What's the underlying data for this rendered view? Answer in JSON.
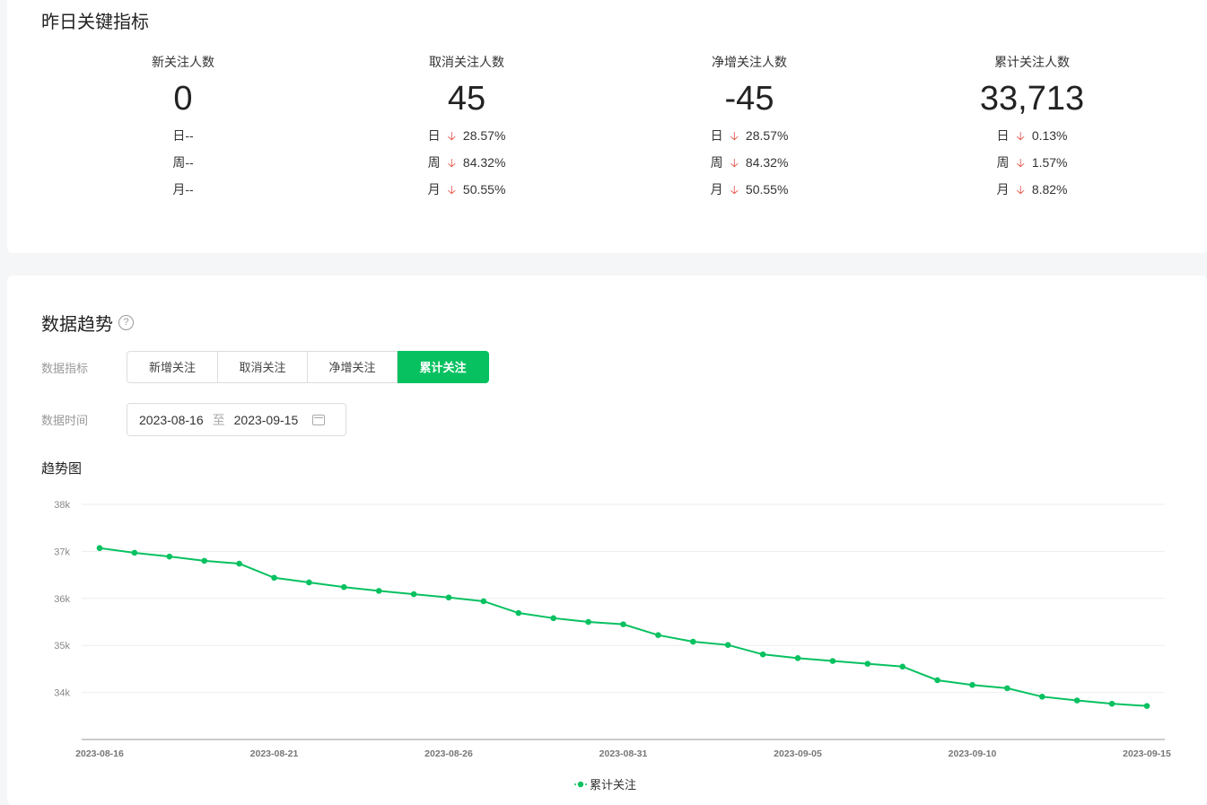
{
  "kpi": {
    "title": "昨日关键指标",
    "metrics": [
      {
        "label": "新关注人数",
        "value": "0",
        "day": {
          "prefix": "日",
          "rate": "--"
        },
        "week": {
          "prefix": "周",
          "rate": "--"
        },
        "month": {
          "prefix": "月",
          "rate": "--"
        }
      },
      {
        "label": "取消关注人数",
        "value": "45",
        "day": {
          "prefix": "日",
          "rate": "28.57%"
        },
        "week": {
          "prefix": "周",
          "rate": "84.32%"
        },
        "month": {
          "prefix": "月",
          "rate": "50.55%"
        }
      },
      {
        "label": "净增关注人数",
        "value": "-45",
        "day": {
          "prefix": "日",
          "rate": "28.57%"
        },
        "week": {
          "prefix": "周",
          "rate": "84.32%"
        },
        "month": {
          "prefix": "月",
          "rate": "50.55%"
        }
      },
      {
        "label": "累计关注人数",
        "value": "33,713",
        "day": {
          "prefix": "日",
          "rate": "0.13%"
        },
        "week": {
          "prefix": "周",
          "rate": "1.57%"
        },
        "month": {
          "prefix": "月",
          "rate": "8.82%"
        }
      }
    ]
  },
  "trend": {
    "title": "数据趋势",
    "help_icon": "question-circle-icon",
    "indicator_label": "数据指标",
    "indicator_options": [
      "新增关注",
      "取消关注",
      "净增关注",
      "累计关注"
    ],
    "indicator_selected": "累计关注",
    "time_label": "数据时间",
    "date_start": "2023-08-16",
    "date_sep": "至",
    "date_end": "2023-09-15",
    "chart_title": "趋势图"
  },
  "colors": {
    "accent": "#07c160",
    "down_arrow": "#e5473e"
  },
  "chart_data": {
    "type": "line",
    "x": [
      "2023-08-16",
      "2023-08-17",
      "2023-08-18",
      "2023-08-19",
      "2023-08-20",
      "2023-08-21",
      "2023-08-22",
      "2023-08-23",
      "2023-08-24",
      "2023-08-25",
      "2023-08-26",
      "2023-08-27",
      "2023-08-28",
      "2023-08-29",
      "2023-08-30",
      "2023-08-31",
      "2023-09-01",
      "2023-09-02",
      "2023-09-03",
      "2023-09-04",
      "2023-09-05",
      "2023-09-06",
      "2023-09-07",
      "2023-09-08",
      "2023-09-09",
      "2023-09-10",
      "2023-09-11",
      "2023-09-12",
      "2023-09-13",
      "2023-09-14",
      "2023-09-15"
    ],
    "x_tick_labels": [
      "2023-08-16",
      "2023-08-21",
      "2023-08-26",
      "2023-08-31",
      "2023-09-05",
      "2023-09-10",
      "2023-09-15"
    ],
    "series": [
      {
        "name": "累计关注",
        "values": [
          37070,
          36970,
          36890,
          36800,
          36740,
          36440,
          36340,
          36240,
          36160,
          36090,
          36020,
          35940,
          35690,
          35580,
          35500,
          35450,
          35220,
          35080,
          35010,
          34810,
          34730,
          34670,
          34610,
          34550,
          34260,
          34160,
          34090,
          33910,
          33830,
          33760,
          33713
        ]
      }
    ],
    "y_ticks": [
      "34k",
      "35k",
      "36k",
      "37k",
      "38k"
    ],
    "ylim": [
      33000,
      38000
    ],
    "grid": true,
    "legend": "bottom-center"
  }
}
